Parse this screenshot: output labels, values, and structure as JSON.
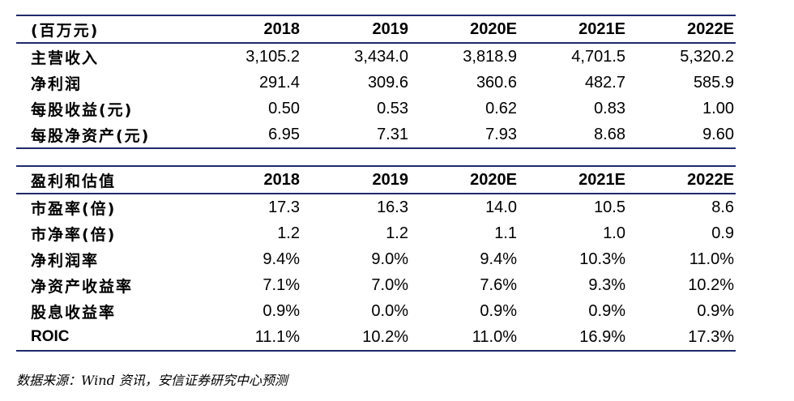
{
  "table1": {
    "header": [
      "(百万元)",
      "2018",
      "2019",
      "2020E",
      "2021E",
      "2022E"
    ],
    "rows": [
      {
        "label": "主营收入",
        "values": [
          "3,105.2",
          "3,434.0",
          "3,818.9",
          "4,701.5",
          "5,320.2"
        ]
      },
      {
        "label": "净利润",
        "values": [
          "291.4",
          "309.6",
          "360.6",
          "482.7",
          "585.9"
        ]
      },
      {
        "label": "每股收益(元)",
        "values": [
          "0.50",
          "0.53",
          "0.62",
          "0.83",
          "1.00"
        ]
      },
      {
        "label": "每股净资产(元)",
        "values": [
          "6.95",
          "7.31",
          "7.93",
          "8.68",
          "9.60"
        ]
      }
    ]
  },
  "table2": {
    "header": [
      "盈利和估值",
      "2018",
      "2019",
      "2020E",
      "2021E",
      "2022E"
    ],
    "rows": [
      {
        "label": "市盈率(倍)",
        "values": [
          "17.3",
          "16.3",
          "14.0",
          "10.5",
          "8.6"
        ]
      },
      {
        "label": "市净率(倍)",
        "values": [
          "1.2",
          "1.2",
          "1.1",
          "1.0",
          "0.9"
        ]
      },
      {
        "label": "净利润率",
        "values": [
          "9.4%",
          "9.0%",
          "9.4%",
          "10.3%",
          "11.0%"
        ]
      },
      {
        "label": "净资产收益率",
        "values": [
          "7.1%",
          "7.0%",
          "7.6%",
          "9.3%",
          "10.2%"
        ]
      },
      {
        "label": "股息收益率",
        "values": [
          "0.9%",
          "0.0%",
          "0.9%",
          "0.9%",
          "0.9%"
        ]
      },
      {
        "label": "ROIC",
        "values": [
          "11.1%",
          "10.2%",
          "11.0%",
          "16.9%",
          "17.3%"
        ]
      }
    ]
  },
  "source": "数据来源：Wind 资讯，安信证券研究中心预测",
  "colors": {
    "rule": "#1f2a6b",
    "text": "#000000"
  }
}
